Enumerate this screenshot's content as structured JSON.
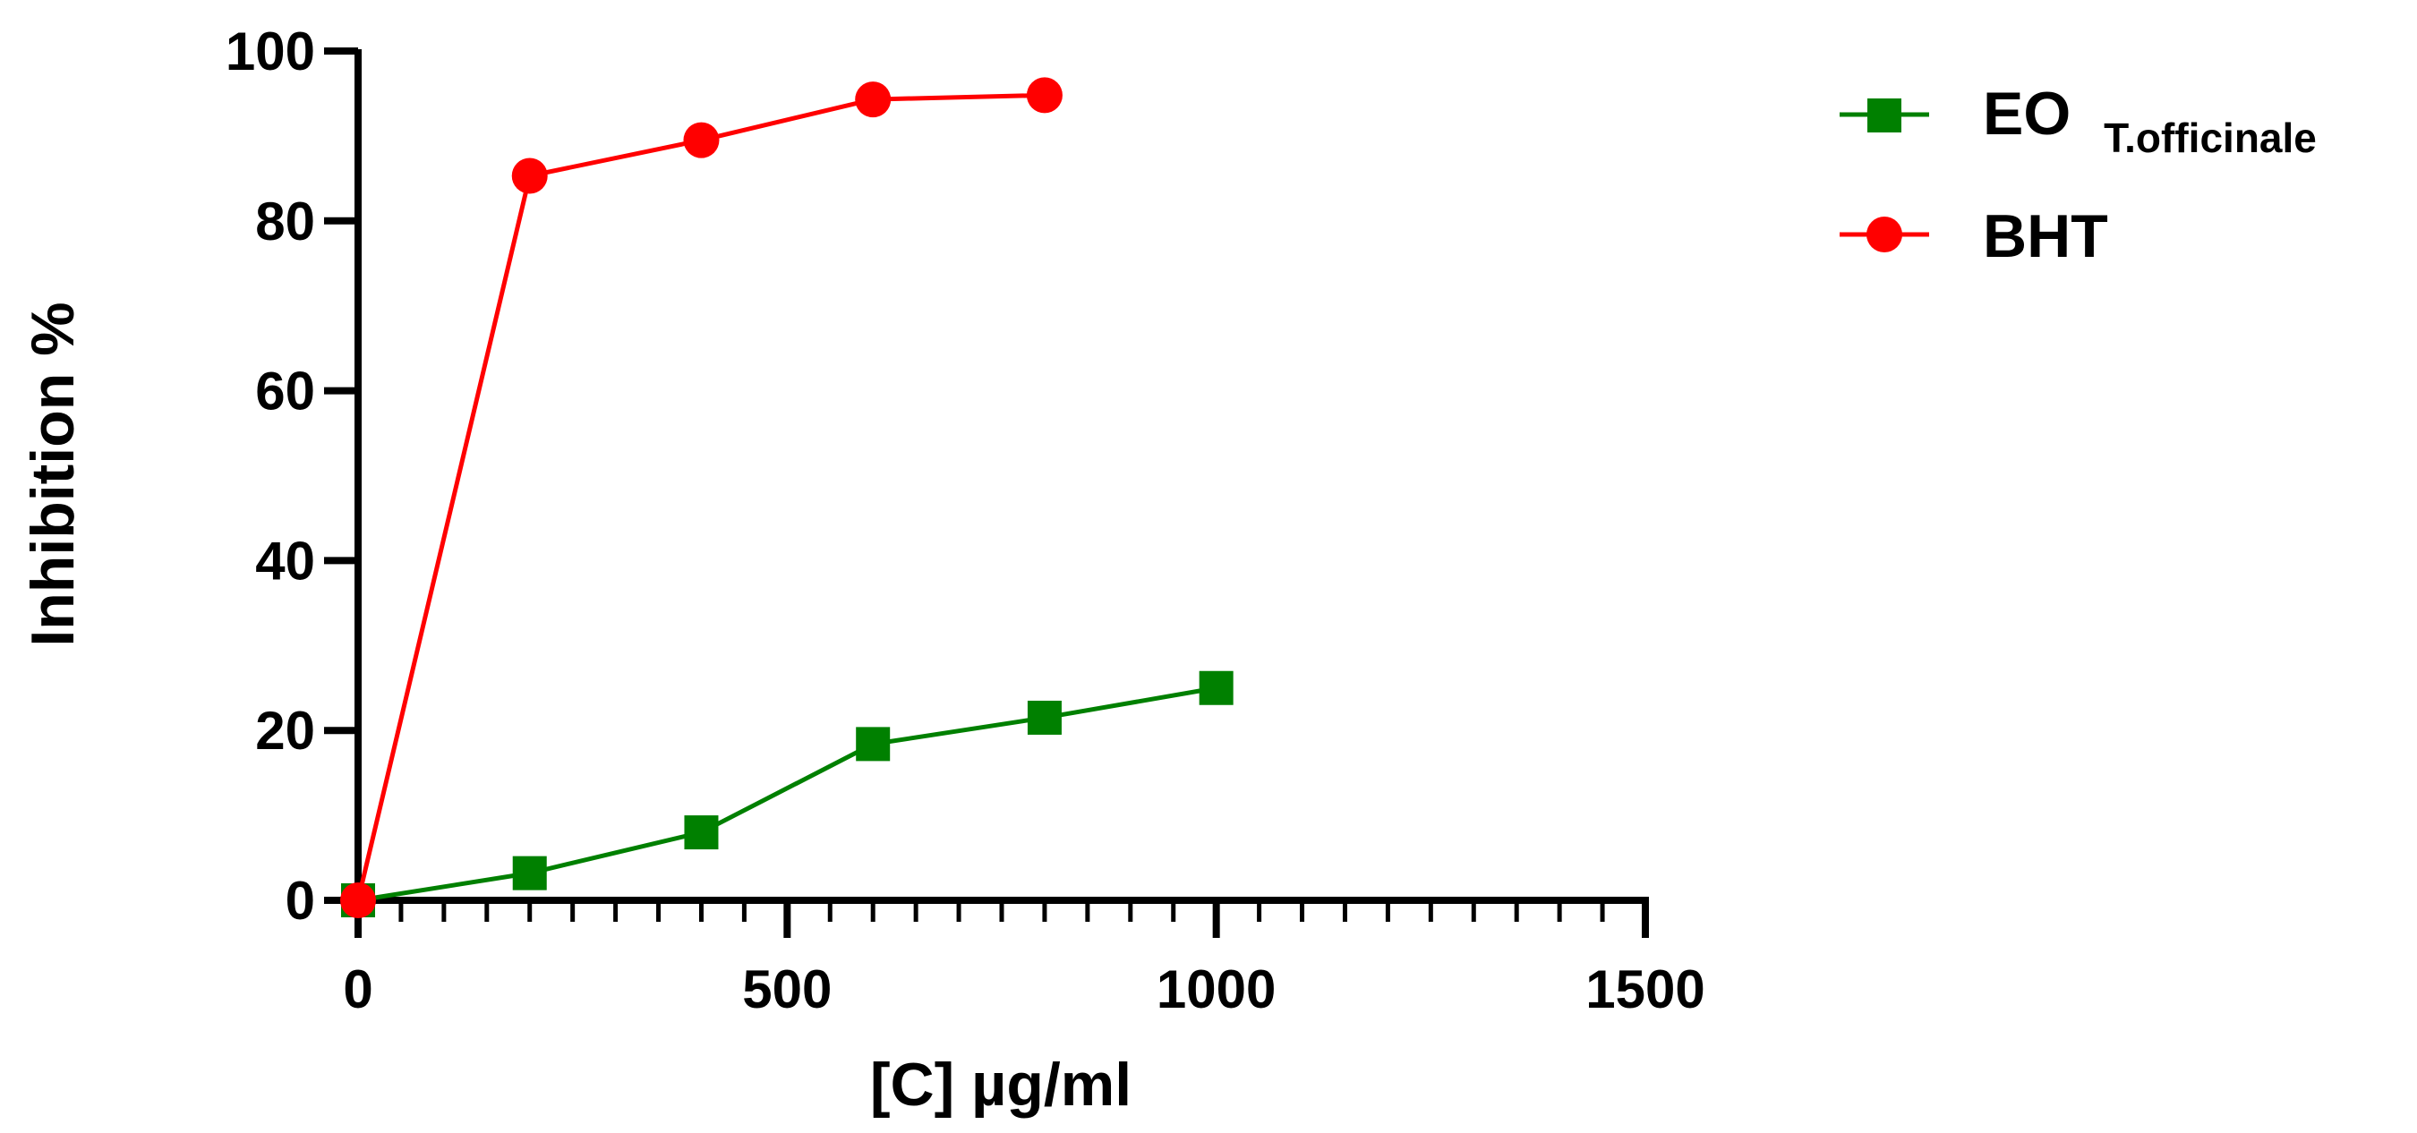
{
  "chart_data": {
    "type": "line",
    "title": "",
    "xlabel": "[C] µg/ml",
    "ylabel": "Inhibition %",
    "xlim": [
      0,
      1500
    ],
    "ylim": [
      0,
      100
    ],
    "x_ticks": [
      0,
      500,
      1000,
      1500
    ],
    "x_tick_labels": [
      "0",
      "500",
      "1000",
      "1500"
    ],
    "x_minor_step": 50,
    "y_ticks": [
      0,
      20,
      40,
      60,
      80,
      100
    ],
    "y_tick_labels": [
      "0",
      "20",
      "40",
      "60",
      "80",
      "100"
    ],
    "grid": false,
    "legend_position": "top-right, outside plot",
    "series": [
      {
        "name": "EO",
        "name_subscript": "T.officinale",
        "color": "#008000",
        "marker": "square",
        "x": [
          0,
          200,
          400,
          600,
          800,
          1000
        ],
        "y": [
          0,
          3.2,
          8.0,
          18.4,
          21.5,
          25.0
        ]
      },
      {
        "name": "BHT",
        "name_subscript": "",
        "color": "#ff0000",
        "marker": "circle",
        "x": [
          0,
          200,
          400,
          600,
          800
        ],
        "y": [
          0,
          85.3,
          89.5,
          94.3,
          94.8
        ]
      }
    ]
  }
}
